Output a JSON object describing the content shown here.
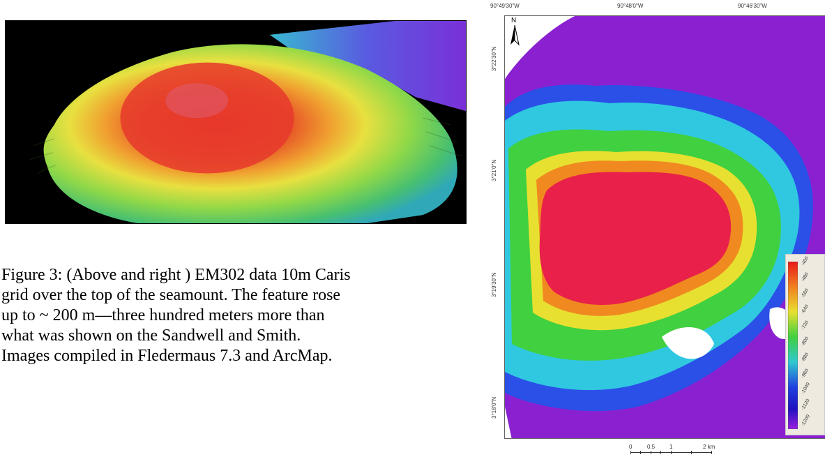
{
  "figure": {
    "caption": "Figure 3: (Above and right ) EM302 data 10m Caris\ngrid over the top of the seamount. The feature rose\n up to ~ 200 m—three hundred meters more than\nwhat was shown on the Sandwell and Smith.\nImages compiled in Fledermaus 7.3 and ArcMap."
  },
  "map": {
    "north_label": "N",
    "lon_labels": [
      "90°49'30\"W",
      "90°48'0\"W",
      "90°46'30\"W"
    ],
    "lat_labels": [
      "3°22'30\"N",
      "3°21'0\"N",
      "3°19'30\"N",
      "3°18'0\"N"
    ],
    "scale_labels": [
      "0",
      "0.5",
      "1",
      "2 km"
    ],
    "legend_values": [
      "-400",
      "-480",
      "-560",
      "-640",
      "-720",
      "-800",
      "-880",
      "-960",
      "-1040",
      "-1120",
      "-1200"
    ],
    "colors": {
      "shallow": "#e8203a",
      "mid": "#30d040",
      "deep": "#7a18d8"
    }
  }
}
